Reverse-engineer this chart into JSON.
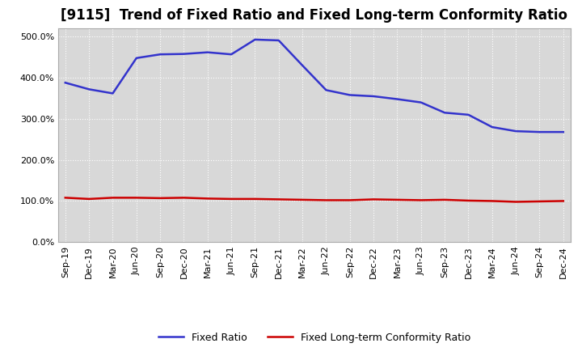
{
  "title": "[9115]  Trend of Fixed Ratio and Fixed Long-term Conformity Ratio",
  "x_labels": [
    "Sep-19",
    "Dec-19",
    "Mar-20",
    "Jun-20",
    "Sep-20",
    "Dec-20",
    "Mar-21",
    "Jun-21",
    "Sep-21",
    "Dec-21",
    "Mar-22",
    "Jun-22",
    "Sep-22",
    "Dec-22",
    "Mar-23",
    "Jun-23",
    "Sep-23",
    "Dec-23",
    "Mar-24",
    "Jun-24",
    "Sep-24",
    "Dec-24"
  ],
  "fixed_ratio": [
    388,
    372,
    362,
    448,
    457,
    458,
    462,
    457,
    493,
    491,
    430,
    370,
    358,
    355,
    348,
    340,
    315,
    310,
    280,
    270,
    268,
    268
  ],
  "fixed_lt_ratio": [
    108,
    105,
    108,
    108,
    107,
    108,
    106,
    105,
    105,
    104,
    103,
    102,
    102,
    104,
    103,
    102,
    103,
    101,
    100,
    98,
    99,
    100
  ],
  "blue_color": "#3333cc",
  "red_color": "#cc0000",
  "ylim": [
    0,
    520
  ],
  "yticks": [
    0,
    100,
    200,
    300,
    400,
    500
  ],
  "legend_fixed_ratio": "Fixed Ratio",
  "legend_fixed_lt_ratio": "Fixed Long-term Conformity Ratio",
  "bg_color": "#ffffff",
  "plot_bg_color": "#d8d8d8",
  "grid_color": "#ffffff",
  "title_fontsize": 12,
  "label_fontsize": 8,
  "legend_fontsize": 9
}
